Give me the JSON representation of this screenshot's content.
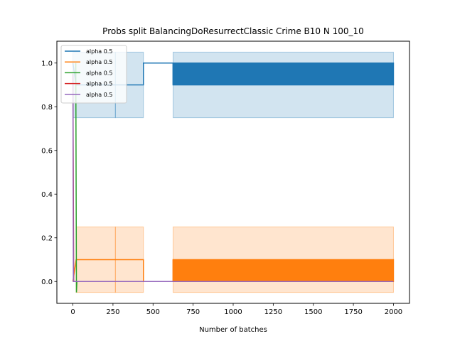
{
  "chart_data": {
    "type": "line",
    "title": "Probs split BalancingDoResurrectClassic Crime B10 N 100_10",
    "xlabel": "Number of batches",
    "ylabel": "",
    "xlim": [
      -100,
      2100
    ],
    "ylim": [
      -0.1,
      1.1
    ],
    "xticks": [
      0,
      250,
      500,
      750,
      1000,
      1250,
      1500,
      1750,
      2000
    ],
    "yticks": [
      0.0,
      0.2,
      0.4,
      0.6,
      0.8,
      1.0
    ],
    "ytick_labels": [
      "0.0",
      "0.2",
      "0.4",
      "0.6",
      "0.8",
      "1.0"
    ],
    "grid": false,
    "legend_position": "top-left",
    "series": [
      {
        "name": "alpha 0.5",
        "color": "#1f77b4",
        "points": [
          [
            0,
            1.0
          ],
          [
            20,
            0.9
          ],
          [
            265,
            0.9
          ],
          [
            440,
            0.9
          ],
          [
            440,
            1.0
          ],
          [
            625,
            1.0
          ],
          [
            625,
            0.9
          ]
        ],
        "oscillation": {
          "x_start": 625,
          "x_end": 2000,
          "low": 0.9,
          "high": 1.0
        },
        "bands": [
          {
            "x_start": 0,
            "x_end": 265,
            "low": 0.75,
            "high": 1.05
          },
          {
            "x_start": 265,
            "x_end": 440,
            "low": 0.75,
            "high": 1.05
          },
          {
            "x_start": 625,
            "x_end": 2000,
            "low": 0.75,
            "high": 1.05
          }
        ]
      },
      {
        "name": "alpha 0.5",
        "color": "#ff7f0e",
        "points": [
          [
            0,
            0.0
          ],
          [
            20,
            0.1
          ],
          [
            265,
            0.1
          ],
          [
            440,
            0.1
          ],
          [
            440,
            0.0
          ],
          [
            625,
            0.0
          ],
          [
            625,
            0.1
          ]
        ],
        "oscillation": {
          "x_start": 625,
          "x_end": 2000,
          "low": 0.0,
          "high": 0.1
        },
        "bands": [
          {
            "x_start": 20,
            "x_end": 265,
            "low": -0.05,
            "high": 0.25
          },
          {
            "x_start": 265,
            "x_end": 440,
            "low": -0.05,
            "high": 0.25
          },
          {
            "x_start": 625,
            "x_end": 2000,
            "low": -0.05,
            "high": 0.25
          }
        ]
      },
      {
        "name": "alpha 0.5",
        "color": "#2ca02c",
        "points": [
          [
            18,
            1.0
          ],
          [
            22,
            -0.05
          ],
          [
            25,
            0.0
          ],
          [
            2000,
            0.0
          ]
        ],
        "oscillation": null,
        "bands": []
      },
      {
        "name": "alpha 0.5",
        "color": "#d62728",
        "points": [
          [
            0,
            0.95
          ],
          [
            5,
            0.0
          ],
          [
            2000,
            0.0
          ]
        ],
        "oscillation": null,
        "bands": []
      },
      {
        "name": "alpha 0.5",
        "color": "#9467bd",
        "points": [
          [
            0,
            0.95
          ],
          [
            3,
            0.0
          ],
          [
            2000,
            0.0
          ]
        ],
        "oscillation": null,
        "bands": []
      }
    ]
  }
}
